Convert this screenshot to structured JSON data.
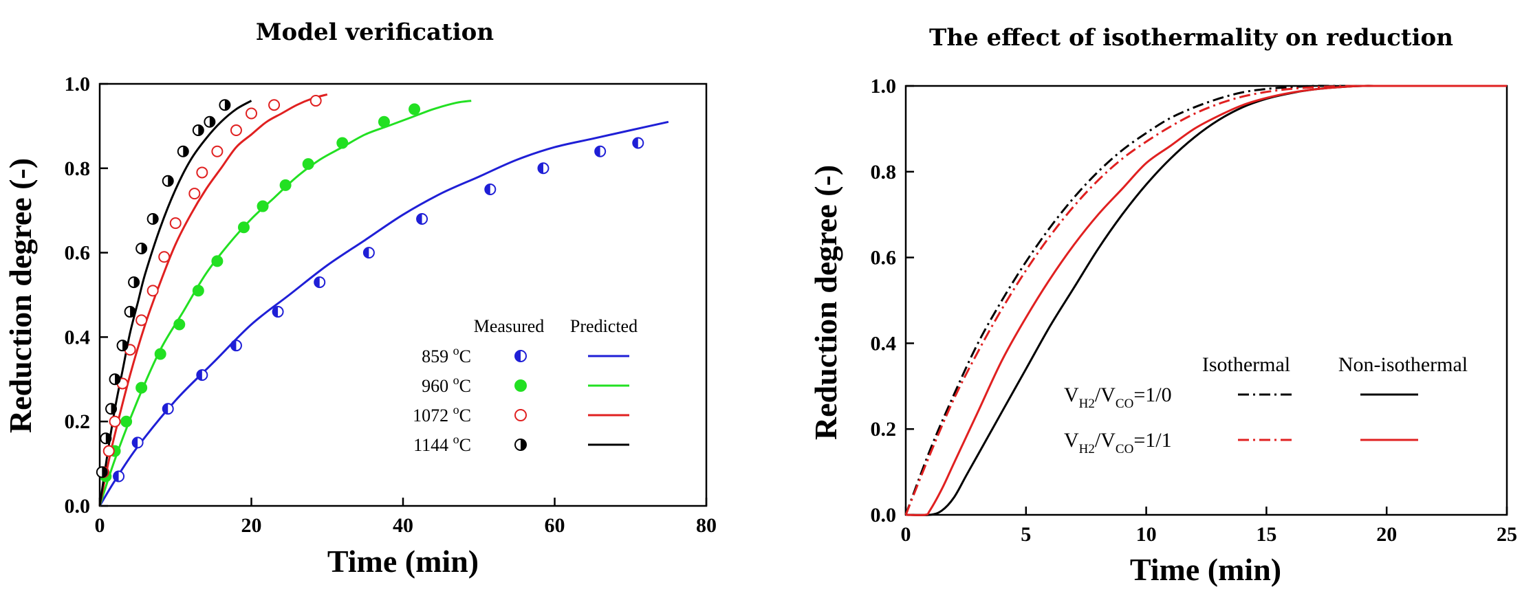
{
  "chart_data": [
    {
      "type": "scatter",
      "title": "Model verification",
      "xlabel": "Time (min)",
      "ylabel": "Reduction degree (-)",
      "xlim": [
        0,
        80
      ],
      "ylim": [
        0,
        1.0
      ],
      "xticks": [
        0,
        20,
        40,
        60,
        80
      ],
      "xtick_labels": [
        "0",
        "20",
        "40",
        "60",
        "80"
      ],
      "yticks": [
        0,
        0.2,
        0.4,
        0.6,
        0.8,
        1.0
      ],
      "ytick_labels": [
        "0.0",
        "0.2",
        "0.4",
        "0.6",
        "0.8",
        "1.0"
      ],
      "grid": false,
      "legend_placement": "center-right",
      "legend_headers": {
        "measured": "Measured",
        "predicted": "Predicted"
      },
      "series": [
        {
          "name": "859 °C",
          "temp": "859",
          "sup": "o",
          "unit": "C",
          "color": "#1f1fd6",
          "marker": "half-filled-left",
          "measured": {
            "x": [
              2.5,
              5,
              9,
              13.5,
              18,
              23.5,
              29,
              35.5,
              42.5,
              51.5,
              58.5,
              66,
              71
            ],
            "y": [
              0.07,
              0.15,
              0.23,
              0.31,
              0.38,
              0.46,
              0.53,
              0.6,
              0.68,
              0.75,
              0.8,
              0.84,
              0.86
            ]
          },
          "predicted": {
            "x": [
              0,
              2,
              5,
              10,
              15,
              20,
              25,
              30,
              35,
              40,
              45,
              50,
              55,
              60,
              65,
              70,
              75
            ],
            "y": [
              0.0,
              0.06,
              0.14,
              0.25,
              0.34,
              0.43,
              0.5,
              0.57,
              0.63,
              0.69,
              0.74,
              0.78,
              0.82,
              0.85,
              0.87,
              0.89,
              0.91
            ]
          }
        },
        {
          "name": "960 °C",
          "temp": "960",
          "sup": "o",
          "unit": "C",
          "color": "#22e022",
          "marker": "filled",
          "measured": {
            "x": [
              0.8,
              2,
              3.5,
              5.5,
              8,
              10.5,
              13,
              15.5,
              19,
              21.5,
              24.5,
              27.5,
              32,
              37.5,
              41.5
            ],
            "y": [
              0.07,
              0.13,
              0.2,
              0.28,
              0.36,
              0.43,
              0.51,
              0.58,
              0.66,
              0.71,
              0.76,
              0.81,
              0.86,
              0.91,
              0.94
            ]
          },
          "predicted": {
            "x": [
              0,
              2,
              5,
              8,
              11,
              14,
              17,
              20,
              23,
              26,
              29,
              32,
              35,
              38,
              41,
              44,
              47,
              49
            ],
            "y": [
              0.0,
              0.11,
              0.25,
              0.37,
              0.46,
              0.55,
              0.62,
              0.68,
              0.73,
              0.78,
              0.82,
              0.85,
              0.88,
              0.9,
              0.92,
              0.94,
              0.955,
              0.96
            ]
          }
        },
        {
          "name": "1072 °C",
          "temp": "1072",
          "sup": "o",
          "unit": "C",
          "color": "#e02020",
          "marker": "open",
          "measured": {
            "x": [
              0.5,
              1.2,
              2,
              3,
              4,
              5.5,
              7,
              8.5,
              10,
              12.5,
              13.5,
              15.5,
              18,
              20,
              23,
              28.5
            ],
            "y": [
              0.08,
              0.13,
              0.2,
              0.29,
              0.37,
              0.44,
              0.51,
              0.59,
              0.67,
              0.74,
              0.79,
              0.84,
              0.89,
              0.93,
              0.95,
              0.96
            ]
          },
          "predicted": {
            "x": [
              0,
              1,
              2,
              4,
              6,
              8,
              10,
              12,
              14,
              16,
              18,
              20,
              22,
              24,
              26,
              28,
              30
            ],
            "y": [
              0.0,
              0.09,
              0.17,
              0.31,
              0.43,
              0.53,
              0.62,
              0.69,
              0.75,
              0.8,
              0.85,
              0.88,
              0.91,
              0.93,
              0.95,
              0.965,
              0.975
            ]
          }
        },
        {
          "name": "1144 °C",
          "temp": "1144",
          "sup": "o",
          "unit": "C",
          "color": "#000000",
          "marker": "half-filled-right",
          "measured": {
            "x": [
              0.3,
              0.8,
              1.5,
              2,
              3,
              4,
              4.5,
              5.5,
              7,
              9,
              11,
              13,
              14.5,
              16.5
            ],
            "y": [
              0.08,
              0.16,
              0.23,
              0.3,
              0.38,
              0.46,
              0.53,
              0.61,
              0.68,
              0.77,
              0.84,
              0.89,
              0.91,
              0.95
            ]
          },
          "predicted": {
            "x": [
              0,
              1,
              2,
              3,
              4,
              5,
              6,
              8,
              10,
              12,
              14,
              16,
              18,
              20
            ],
            "y": [
              0.0,
              0.12,
              0.23,
              0.32,
              0.41,
              0.48,
              0.55,
              0.66,
              0.75,
              0.82,
              0.87,
              0.91,
              0.94,
              0.96
            ]
          }
        }
      ]
    },
    {
      "type": "line",
      "title": "The effect of isothermality on reduction",
      "xlabel": "Time (min)",
      "ylabel": "Reduction degree (-)",
      "xlim": [
        0,
        25
      ],
      "ylim": [
        0,
        1.0
      ],
      "xticks": [
        0,
        5,
        10,
        15,
        20,
        25
      ],
      "xtick_labels": [
        "0",
        "5",
        "10",
        "15",
        "20",
        "25"
      ],
      "yticks": [
        0,
        0.2,
        0.4,
        0.6,
        0.8,
        1.0
      ],
      "ytick_labels": [
        "0.0",
        "0.2",
        "0.4",
        "0.6",
        "0.8",
        "1.0"
      ],
      "grid": false,
      "legend_placement": "bottom-right",
      "legend_headers": {
        "isothermal": "Isothermal",
        "non_isothermal": "Non-isothermal"
      },
      "legend_rows": [
        {
          "v": "V",
          "sub1": "H2",
          "slash": "/V",
          "sub2": "CO",
          "ratio": "=1/0",
          "color": "#000000"
        },
        {
          "v": "V",
          "sub1": "H2",
          "slash": "/V",
          "sub2": "CO",
          "ratio": "=1/1",
          "color": "#e02020"
        }
      ],
      "series": [
        {
          "ratio": "1/0",
          "mode": "isothermal",
          "color": "#000000",
          "dash": "dash-dot",
          "x": [
            0,
            1,
            2,
            3,
            4,
            5,
            6,
            7,
            8,
            9,
            10,
            11,
            12,
            13,
            14,
            15,
            16,
            17,
            18,
            25
          ],
          "y": [
            0.0,
            0.15,
            0.28,
            0.4,
            0.5,
            0.59,
            0.67,
            0.74,
            0.8,
            0.85,
            0.89,
            0.925,
            0.95,
            0.97,
            0.985,
            0.993,
            0.997,
            1.0,
            1.0,
            1.0
          ]
        },
        {
          "ratio": "1/1",
          "mode": "isothermal",
          "color": "#e02020",
          "dash": "dash-dot",
          "x": [
            0,
            1,
            2,
            3,
            4,
            5,
            6,
            7,
            8,
            9,
            10,
            11,
            12,
            13,
            14,
            15,
            16,
            17,
            18,
            19,
            25
          ],
          "y": [
            0.0,
            0.14,
            0.27,
            0.38,
            0.48,
            0.57,
            0.65,
            0.72,
            0.78,
            0.83,
            0.87,
            0.905,
            0.935,
            0.958,
            0.975,
            0.986,
            0.993,
            0.997,
            0.999,
            1.0,
            1.0
          ]
        },
        {
          "ratio": "1/0",
          "mode": "non-isothermal",
          "color": "#000000",
          "dash": "solid",
          "x": [
            0,
            1,
            1.5,
            2,
            2.5,
            3,
            4,
            5,
            6,
            7,
            8,
            9,
            10,
            11,
            12,
            13,
            14,
            15,
            16,
            17,
            18,
            19,
            20,
            25
          ],
          "y": [
            0.0,
            0.0,
            0.01,
            0.04,
            0.09,
            0.14,
            0.24,
            0.34,
            0.44,
            0.53,
            0.62,
            0.7,
            0.77,
            0.83,
            0.88,
            0.92,
            0.95,
            0.97,
            0.983,
            0.992,
            0.997,
            1.0,
            1.0,
            1.0
          ]
        },
        {
          "ratio": "1/1",
          "mode": "non-isothermal",
          "color": "#e02020",
          "dash": "solid",
          "x": [
            0,
            0.8,
            1,
            1.5,
            2,
            3,
            4,
            5,
            6,
            7,
            8,
            9,
            10,
            11,
            12,
            13,
            14,
            15,
            16,
            17,
            18,
            19,
            20,
            25
          ],
          "y": [
            0.0,
            0.0,
            0.01,
            0.06,
            0.12,
            0.24,
            0.36,
            0.46,
            0.55,
            0.63,
            0.7,
            0.76,
            0.82,
            0.86,
            0.9,
            0.93,
            0.955,
            0.972,
            0.984,
            0.992,
            0.997,
            1.0,
            1.0,
            1.0
          ]
        }
      ]
    }
  ]
}
